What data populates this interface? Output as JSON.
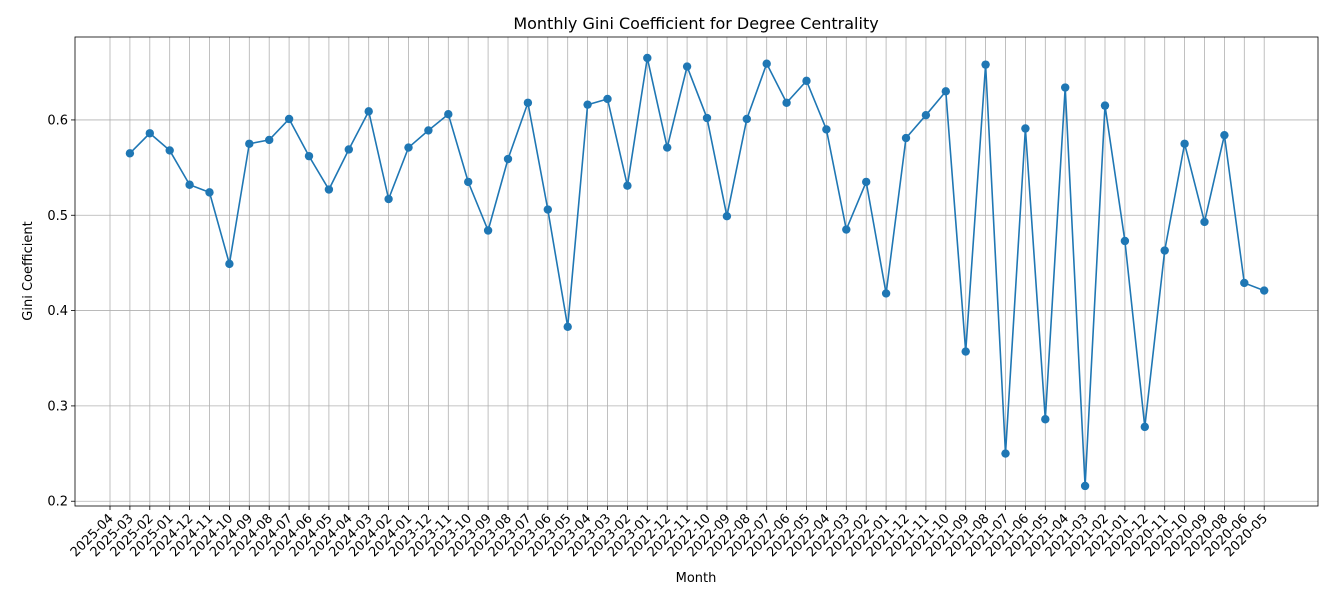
{
  "chart_data": {
    "type": "line",
    "title": "Monthly Gini Coefficient for Degree Centrality",
    "xlabel": "Month",
    "ylabel": "Gini Coefficient",
    "grid": true,
    "ylim": [
      0.195,
      0.687
    ],
    "yticks": [
      0.2,
      0.3,
      0.4,
      0.5,
      0.6
    ],
    "ytick_labels": [
      "0.2",
      "0.3",
      "0.4",
      "0.5",
      "0.6"
    ],
    "x": [
      "2025-04",
      "2025-03",
      "2025-02",
      "2025-01",
      "2024-12",
      "2024-11",
      "2024-10",
      "2024-09",
      "2024-08",
      "2024-07",
      "2024-06",
      "2024-05",
      "2024-04",
      "2024-03",
      "2024-02",
      "2024-01",
      "2023-12",
      "2023-11",
      "2023-10",
      "2023-09",
      "2023-08",
      "2023-07",
      "2023-06",
      "2023-05",
      "2023-04",
      "2023-03",
      "2023-02",
      "2023-01",
      "2022-12",
      "2022-11",
      "2022-10",
      "2022-09",
      "2022-08",
      "2022-07",
      "2022-06",
      "2022-05",
      "2022-04",
      "2022-03",
      "2022-02",
      "2022-01",
      "2021-12",
      "2021-11",
      "2021-10",
      "2021-09",
      "2021-08",
      "2021-07",
      "2021-06",
      "2021-05",
      "2021-04",
      "2021-03",
      "2021-02",
      "2021-01",
      "2020-12",
      "2020-11",
      "2020-10",
      "2020-09",
      "2020-08",
      "2020-06",
      "2020-05"
    ],
    "series": [
      {
        "name": "",
        "color": "#1f77b4",
        "values": [
          null,
          0.565,
          0.586,
          0.568,
          0.532,
          0.524,
          0.449,
          0.575,
          0.579,
          0.601,
          0.562,
          0.527,
          0.569,
          0.609,
          0.517,
          0.571,
          0.589,
          0.606,
          0.535,
          0.484,
          0.559,
          0.618,
          0.506,
          0.383,
          0.616,
          0.622,
          0.531,
          0.665,
          0.571,
          0.656,
          0.602,
          0.499,
          0.601,
          0.659,
          0.618,
          0.641,
          0.59,
          0.485,
          0.535,
          0.418,
          0.581,
          0.605,
          0.63,
          0.357,
          0.658,
          0.25,
          0.591,
          0.286,
          0.634,
          0.216,
          0.615,
          0.473,
          0.278,
          0.463,
          0.575,
          0.493,
          0.584,
          0.429,
          0.421
        ]
      }
    ]
  }
}
